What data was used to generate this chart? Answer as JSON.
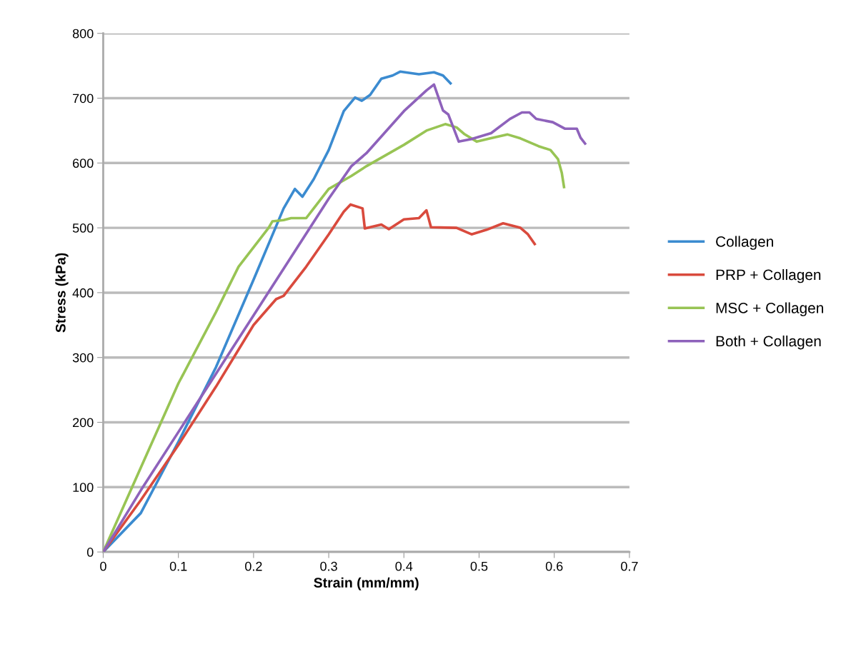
{
  "chart_data": {
    "type": "line",
    "xlabel": "Strain (mm/mm)",
    "ylabel": "Stress (kPa)",
    "xlim": [
      0,
      0.7
    ],
    "xticks": [
      0,
      0.1,
      0.2,
      0.3,
      0.4,
      0.5,
      0.6,
      0.7
    ],
    "ylim": [
      0,
      800
    ],
    "yticks": [
      0,
      100,
      200,
      300,
      400,
      500,
      600,
      700,
      800
    ],
    "grid": "y",
    "legend": "right",
    "marker": "none",
    "line_style": "solid",
    "series": [
      {
        "name": "Collagen",
        "color": "#3b8bd0",
        "x": [
          0,
          0.05,
          0.1,
          0.15,
          0.2,
          0.24,
          0.255,
          0.265,
          0.28,
          0.3,
          0.32,
          0.335,
          0.344,
          0.355,
          0.37,
          0.385,
          0.395,
          0.42,
          0.44,
          0.452,
          0.462
        ],
        "values": [
          0,
          60,
          170,
          285,
          420,
          530,
          560,
          548,
          575,
          620,
          680,
          701,
          696,
          705,
          730,
          735,
          741,
          737,
          740,
          735,
          723
        ]
      },
      {
        "name": "PRP + Collagen",
        "color": "#d94a3d",
        "x": [
          0,
          0.05,
          0.1,
          0.15,
          0.2,
          0.23,
          0.24,
          0.27,
          0.3,
          0.32,
          0.329,
          0.345,
          0.348,
          0.37,
          0.38,
          0.4,
          0.42,
          0.43,
          0.436,
          0.47,
          0.49,
          0.51,
          0.532,
          0.555,
          0.565,
          0.574
        ],
        "values": [
          0,
          80,
          165,
          255,
          350,
          390,
          395,
          440,
          490,
          525,
          536,
          530,
          499,
          505,
          498,
          513,
          515,
          527,
          501,
          500,
          490,
          497,
          507,
          500,
          490,
          475
        ]
      },
      {
        "name": "MSC + Collagen",
        "color": "#98c454",
        "x": [
          0,
          0.05,
          0.1,
          0.15,
          0.18,
          0.2,
          0.22,
          0.225,
          0.24,
          0.25,
          0.27,
          0.28,
          0.3,
          0.33,
          0.35,
          0.4,
          0.43,
          0.455,
          0.47,
          0.48,
          0.497,
          0.515,
          0.538,
          0.555,
          0.579,
          0.595,
          0.605,
          0.61,
          0.613
        ],
        "values": [
          0,
          130,
          260,
          370,
          440,
          470,
          500,
          510,
          512,
          515,
          515,
          530,
          560,
          580,
          595,
          628,
          650,
          660,
          655,
          645,
          633,
          638,
          644,
          638,
          626,
          620,
          606,
          585,
          563
        ]
      },
      {
        "name": "Both + Collagen",
        "color": "#8e62bb",
        "x": [
          0,
          0.05,
          0.1,
          0.15,
          0.2,
          0.25,
          0.3,
          0.33,
          0.35,
          0.4,
          0.43,
          0.44,
          0.452,
          0.459,
          0.473,
          0.49,
          0.516,
          0.541,
          0.557,
          0.567,
          0.576,
          0.598,
          0.614,
          0.63,
          0.635,
          0.641
        ],
        "values": [
          0,
          95,
          185,
          275,
          365,
          455,
          545,
          595,
          615,
          680,
          712,
          721,
          681,
          675,
          633,
          637,
          646,
          668,
          678,
          678,
          668,
          663,
          653,
          653,
          639,
          630
        ]
      }
    ]
  }
}
